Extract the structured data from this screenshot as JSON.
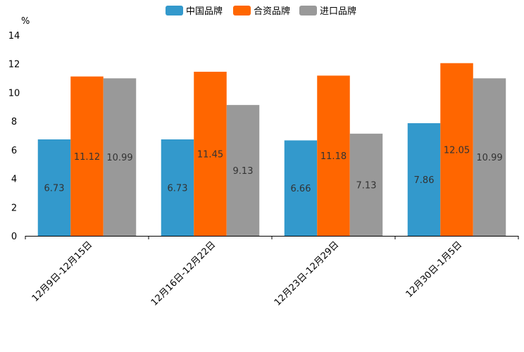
{
  "colors": {
    "china": "#3399cc",
    "joint": "#ff6600",
    "import": "#999999",
    "axis": "#000000",
    "label": "#333333"
  },
  "chart_data": {
    "type": "bar",
    "title": "",
    "xlabel": "",
    "ylabel": "%",
    "ylim": [
      0,
      14
    ],
    "yticks": [
      0,
      2,
      4,
      6,
      8,
      10,
      12,
      14
    ],
    "grid": false,
    "legend_position": "top-center",
    "categories": [
      "12月9日-12月15日",
      "12月16日-12月22日",
      "12月23日-12月29日",
      "12月30日-1月5日"
    ],
    "series": [
      {
        "name": "中国品牌",
        "color_key": "china",
        "values": [
          6.73,
          6.73,
          6.66,
          7.86
        ],
        "labels": [
          "6.73",
          "6.73",
          "6.66",
          "7.86"
        ]
      },
      {
        "name": "合资品牌",
        "color_key": "joint",
        "values": [
          11.12,
          11.45,
          11.18,
          12.05
        ],
        "labels": [
          "11.12",
          "11.45",
          "11.18",
          "12.05"
        ]
      },
      {
        "name": "进口品牌",
        "color_key": "import",
        "values": [
          10.99,
          9.13,
          7.13,
          10.99
        ],
        "labels": [
          "10.99",
          "9.13",
          "7.13",
          "10.99"
        ]
      }
    ]
  }
}
